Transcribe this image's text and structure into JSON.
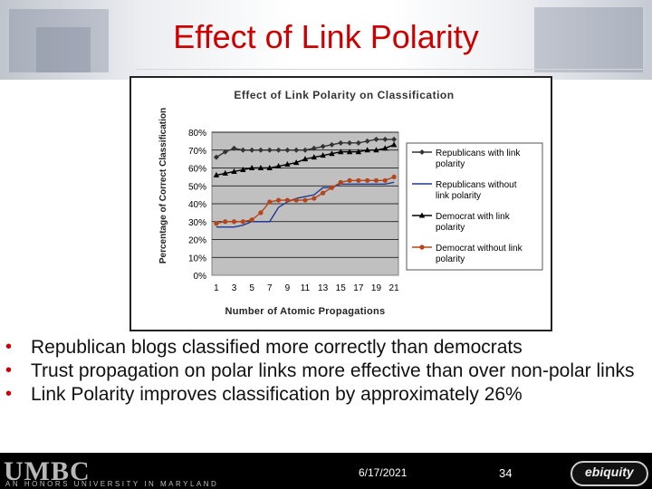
{
  "slide": {
    "title": "Effect of Link Polarity",
    "bullets": [
      "Republican blogs classified more correctly than democrats",
      "Trust propagation on polar links more effective than over non-polar links",
      "Link Polarity improves classification by approximately 26%"
    ],
    "footer": {
      "logo": "UMBC",
      "logo_sub": "AN HONORS UNIVERSITY IN MARYLAND",
      "date": "6/17/2021",
      "slide_number": "34",
      "partner_logo": "ebiquity"
    }
  },
  "colors": {
    "title": "#cc0000",
    "bullet": "#cc0000",
    "footer_bg": "#000000",
    "plot_bg": "#c0c0c0",
    "rep_polar": "#333333",
    "rep_nonpolar": "#1f3a93",
    "dem_polar": "#000000",
    "dem_nonpolar": "#b5451b"
  },
  "chart_data": {
    "type": "line",
    "title": "Effect of Link Polarity on Classification",
    "xlabel": "Number of Atomic Propagations",
    "ylabel": "Percentage of Correct Classification",
    "x": [
      1,
      2,
      3,
      4,
      5,
      6,
      7,
      8,
      9,
      10,
      11,
      12,
      13,
      14,
      15,
      16,
      17,
      18,
      19,
      20,
      21
    ],
    "x_tick_labels": [
      "1",
      "3",
      "5",
      "7",
      "9",
      "11",
      "13",
      "15",
      "17",
      "19",
      "21"
    ],
    "y_tick_labels": [
      "0%",
      "10%",
      "20%",
      "30%",
      "40%",
      "50%",
      "60%",
      "70%",
      "80%"
    ],
    "ylim": [
      0,
      80
    ],
    "grid": true,
    "legend_position": "right",
    "series": [
      {
        "name": "Republicans with link polarity",
        "marker": "diamond",
        "color": "#333333",
        "values": [
          66,
          69,
          71,
          70,
          70,
          70,
          70,
          70,
          70,
          70,
          70,
          71,
          72,
          73,
          74,
          74,
          74,
          75,
          76,
          76,
          76
        ]
      },
      {
        "name": "Republicans without link polarity",
        "marker": "none",
        "color": "#1f3a93",
        "values": [
          27,
          27,
          27,
          28,
          30,
          30,
          30,
          38,
          41,
          43,
          44,
          45,
          49,
          49,
          51,
          51,
          51,
          51,
          51,
          51,
          52
        ]
      },
      {
        "name": "Democrat with link polarity",
        "marker": "triangle",
        "color": "#000000",
        "values": [
          56,
          57,
          58,
          59,
          60,
          60,
          60,
          61,
          62,
          63,
          65,
          66,
          67,
          68,
          69,
          69,
          69,
          70,
          70,
          71,
          73
        ]
      },
      {
        "name": "Democrat without link polarity",
        "marker": "circle",
        "color": "#b5451b",
        "values": [
          29,
          30,
          30,
          30,
          31,
          35,
          41,
          42,
          42,
          42,
          42,
          43,
          46,
          49,
          52,
          53,
          53,
          53,
          53,
          53,
          55
        ]
      }
    ]
  }
}
